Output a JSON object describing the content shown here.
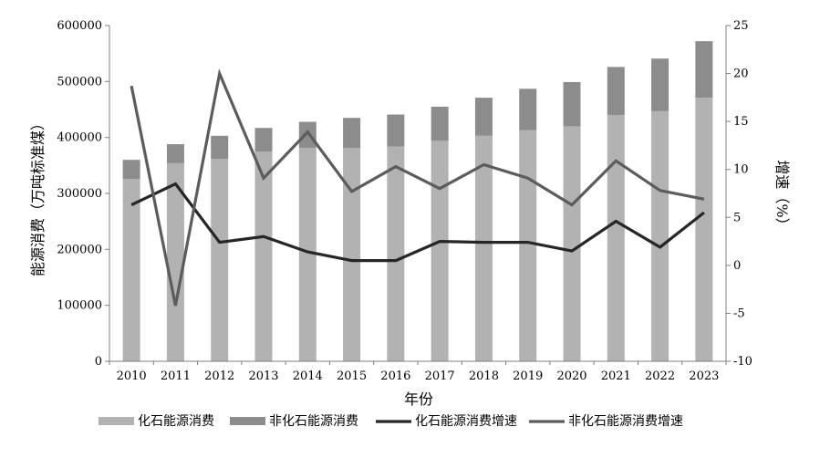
{
  "chart_data": {
    "type": "bar",
    "categories": [
      "2010",
      "2011",
      "2012",
      "2013",
      "2014",
      "2015",
      "2016",
      "2017",
      "2018",
      "2019",
      "2020",
      "2021",
      "2022",
      "2023"
    ],
    "xlabel": "年份",
    "ylabel": "能源消费（万吨标准煤）",
    "y2label": "增速（%）",
    "ylim": [
      0,
      600000
    ],
    "y2lim": [
      -10,
      25
    ],
    "yticks": [
      "0",
      "100000",
      "200000",
      "300000",
      "400000",
      "500000",
      "600000"
    ],
    "y2ticks": [
      "-10",
      "-5",
      "0",
      "5",
      "10",
      "15",
      "20",
      "25"
    ],
    "grid": false,
    "legend_position": "bottom",
    "stacked_bars": true,
    "series": [
      {
        "name": "化石能源消费",
        "kind": "bar",
        "axis": "left",
        "color": "#b2b2b2",
        "values": [
          326000,
          354000,
          362000,
          375000,
          381000,
          381000,
          384000,
          394000,
          403000,
          413000,
          420000,
          440000,
          447000,
          471000
        ]
      },
      {
        "name": "非化石能源消费",
        "kind": "bar",
        "axis": "left",
        "color": "#8c8c8c",
        "values": [
          34000,
          34000,
          41000,
          42000,
          47000,
          54000,
          57000,
          61000,
          68000,
          74000,
          79000,
          86000,
          94000,
          101000
        ]
      },
      {
        "name": "化石能源消费增速",
        "kind": "line",
        "axis": "right",
        "color": "#262626",
        "values": [
          6.3,
          8.5,
          2.4,
          3.0,
          1.4,
          0.5,
          0.5,
          2.5,
          2.4,
          2.4,
          1.5,
          4.6,
          1.9,
          5.5
        ]
      },
      {
        "name": "非化石能源消费增速",
        "kind": "line",
        "axis": "right",
        "color": "#5c5c5c",
        "values": [
          18.7,
          -4.2,
          20.0,
          9.1,
          13.9,
          7.7,
          10.3,
          8.0,
          10.5,
          9.1,
          6.3,
          10.9,
          7.8,
          6.9
        ]
      }
    ]
  }
}
